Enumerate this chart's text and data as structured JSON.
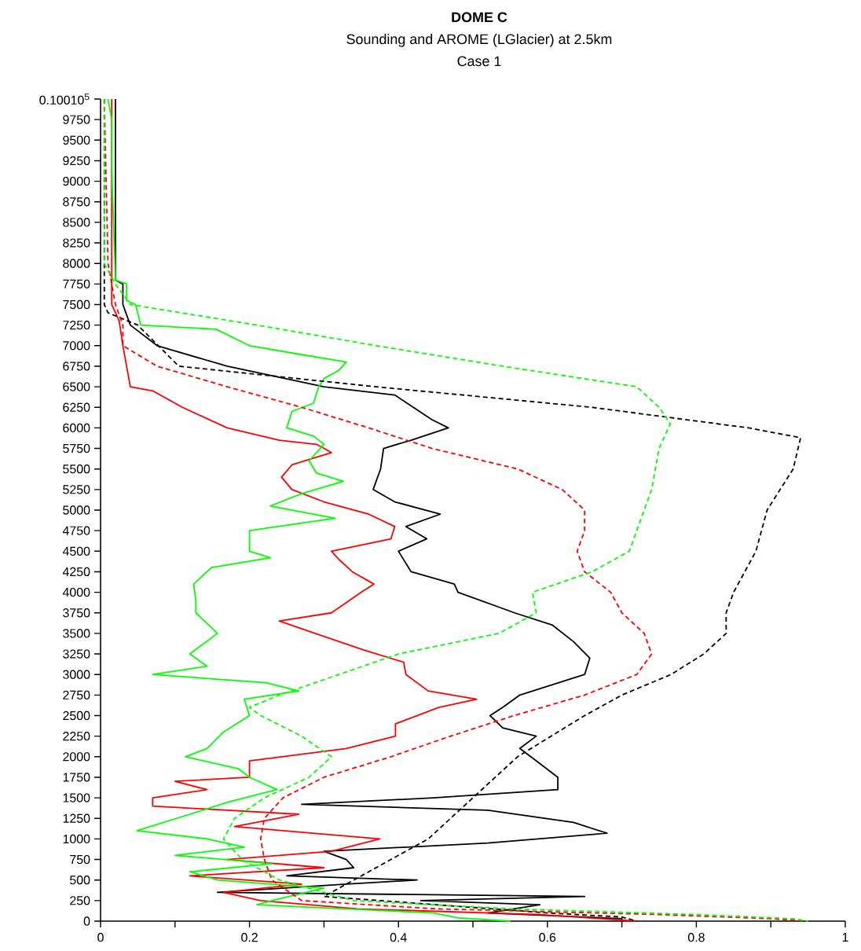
{
  "chart_data": {
    "type": "line",
    "title": "DOME C",
    "subtitle": "Sounding and AROME (LGlacier) at 2.5km",
    "annotations": [
      "Case 1"
    ],
    "xlim": [
      0,
      1
    ],
    "ylim": [
      0,
      10000
    ],
    "xticks": [
      0,
      {
        "value": 0.1,
        "label": null
      },
      {
        "value": 0.2,
        "label": "0.2"
      },
      {
        "value": 0.3,
        "label": null
      },
      {
        "value": 0.4,
        "label": "0.4"
      },
      {
        "value": 0.5,
        "label": null
      },
      {
        "value": 0.6,
        "label": "0.6"
      },
      {
        "value": 0.7,
        "label": null
      },
      {
        "value": 0.8,
        "label": "0.8"
      },
      {
        "value": 0.9,
        "label": null
      },
      1
    ],
    "yticks": [
      0,
      250,
      500,
      750,
      1000,
      1250,
      1500,
      1750,
      2000,
      2250,
      2500,
      2750,
      3000,
      3250,
      3500,
      3750,
      4000,
      4250,
      4500,
      4750,
      5000,
      5250,
      5500,
      5750,
      6000,
      6250,
      6500,
      6750,
      7000,
      7250,
      7500,
      7750,
      8000,
      8250,
      8500,
      8750,
      9000,
      9250,
      9500,
      9750,
      {
        "value": 10000,
        "label": "0.10010$^{5}$"
      }
    ],
    "grid": false,
    "legend": false,
    "marker": "none",
    "series": [
      {
        "color": "#000000",
        "line_style": "solid",
        "x": [
          0.02,
          0.02,
          0.03,
          0.03,
          0.04,
          0.076,
          0.17,
          0.3,
          0.395,
          0.42,
          0.445,
          0.467,
          0.417,
          0.38,
          0.376,
          0.366,
          0.395,
          0.456,
          0.41,
          0.438,
          0.4,
          0.417,
          0.475,
          0.48,
          0.556,
          0.607,
          0.635,
          0.657,
          0.65,
          0.563,
          0.54,
          0.523,
          0.54,
          0.585,
          0.563,
          0.585,
          0.614,
          0.614,
          0.447,
          0.27,
          0.52,
          0.635,
          0.68,
          0.52,
          0.3,
          0.33,
          0.34,
          0.25,
          0.425,
          0.33,
          0.157,
          0.65,
          0.43,
          0.59,
          0.52,
          0.7,
          0.7
        ],
        "values": [
          10000,
          7800,
          7750,
          7500,
          7250,
          7000,
          6750,
          6500,
          6400,
          6250,
          6100,
          6000,
          5850,
          5750,
          5500,
          5250,
          5100,
          4950,
          4800,
          4650,
          4500,
          4250,
          4100,
          4000,
          3750,
          3600,
          3400,
          3200,
          3000,
          2750,
          2600,
          2500,
          2350,
          2250,
          2100,
          1950,
          1750,
          1600,
          1500,
          1420,
          1350,
          1200,
          1070,
          950,
          850,
          750,
          650,
          550,
          500,
          450,
          350,
          300,
          250,
          200,
          100,
          30,
          0
        ]
      },
      {
        "color": "#ff0000",
        "line_style": "solid",
        "x": [
          0.015,
          0.015,
          0.025,
          0.03,
          0.04,
          0.07,
          0.11,
          0.17,
          0.24,
          0.29,
          0.31,
          0.257,
          0.243,
          0.257,
          0.3,
          0.36,
          0.395,
          0.39,
          0.31,
          0.32,
          0.338,
          0.367,
          0.35,
          0.31,
          0.24,
          0.288,
          0.353,
          0.407,
          0.41,
          0.44,
          0.505,
          0.454,
          0.396,
          0.396,
          0.33,
          0.2,
          0.2,
          0.1,
          0.143,
          0.07,
          0.07,
          0.266,
          0.18,
          0.375,
          0.31,
          0.17,
          0.3,
          0.12,
          0.27,
          0.165,
          0.215,
          0.345,
          0.59,
          0.72
        ],
        "values": [
          10000,
          7500,
          7300,
          7000,
          6500,
          6450,
          6250,
          6000,
          5850,
          5800,
          5700,
          5550,
          5400,
          5250,
          5100,
          4950,
          4800,
          4650,
          4500,
          4400,
          4250,
          4100,
          4000,
          3750,
          3650,
          3500,
          3300,
          3150,
          3000,
          2800,
          2700,
          2600,
          2400,
          2250,
          2100,
          1950,
          1750,
          1700,
          1600,
          1500,
          1400,
          1300,
          1150,
          1000,
          850,
          750,
          650,
          550,
          450,
          350,
          250,
          150,
          80,
          0
        ]
      },
      {
        "color": "#00ff00",
        "line_style": "solid",
        "x": [
          0.01,
          0.015,
          0.015,
          0.02,
          0.035,
          0.035,
          0.047,
          0.054,
          0.155,
          0.2,
          0.264,
          0.33,
          0.32,
          0.3,
          0.293,
          0.286,
          0.257,
          0.25,
          0.286,
          0.3,
          0.28,
          0.29,
          0.326,
          0.27,
          0.228,
          0.315,
          0.2,
          0.2,
          0.228,
          0.149,
          0.143,
          0.125,
          0.128,
          0.128,
          0.157,
          0.12,
          0.143,
          0.07,
          0.222,
          0.266,
          0.193,
          0.2,
          0.165,
          0.143,
          0.114,
          0.186,
          0.2,
          0.237,
          0.172,
          0.12,
          0.049,
          0.143,
          0.193,
          0.1,
          0.23,
          0.12,
          0.157,
          0.3,
          0.23,
          0.21,
          0.447,
          0.48,
          0.55
        ],
        "values": [
          10000,
          9750,
          9150,
          7800,
          7750,
          7550,
          7500,
          7250,
          7200,
          7000,
          6900,
          6800,
          6700,
          6600,
          6500,
          6300,
          6200,
          6000,
          5900,
          5800,
          5600,
          5450,
          5350,
          5200,
          5050,
          4900,
          4750,
          4500,
          4420,
          4300,
          4250,
          4100,
          3900,
          3750,
          3500,
          3250,
          3100,
          3000,
          2900,
          2800,
          2700,
          2500,
          2300,
          2100,
          2000,
          1850,
          1750,
          1600,
          1450,
          1300,
          1100,
          1000,
          900,
          800,
          700,
          600,
          500,
          400,
          250,
          200,
          100,
          40,
          0
        ]
      },
      {
        "color": "#000000",
        "line_style": "dashed",
        "x": [
          0.005,
          0.005,
          0.01,
          0.05,
          0.105,
          0.37,
          0.66,
          0.87,
          0.94,
          0.93,
          0.895,
          0.88,
          0.85,
          0.84,
          0.84,
          0.81,
          0.766,
          0.7,
          0.65,
          0.56,
          0.5,
          0.47,
          0.44,
          0.39,
          0.34,
          0.3,
          0.45,
          0.6,
          0.7,
          0.72
        ],
        "values": [
          10000,
          7500,
          7400,
          7250,
          6750,
          6500,
          6250,
          6000,
          5880,
          5500,
          5000,
          4500,
          4000,
          3750,
          3500,
          3250,
          3000,
          2750,
          2500,
          2000,
          1500,
          1250,
          1000,
          750,
          500,
          300,
          200,
          100,
          50,
          0
        ]
      },
      {
        "color": "#ff0000",
        "line_style": "dashed",
        "x": [
          0.005,
          0.01,
          0.02,
          0.03,
          0.03,
          0.076,
          0.17,
          0.27,
          0.36,
          0.445,
          0.56,
          0.62,
          0.65,
          0.65,
          0.64,
          0.65,
          0.685,
          0.7,
          0.73,
          0.74,
          0.72,
          0.65,
          0.555,
          0.47,
          0.39,
          0.3,
          0.245,
          0.22,
          0.215,
          0.22,
          0.23,
          0.27,
          0.45,
          0.75,
          0.9,
          0.95
        ],
        "values": [
          10000,
          8000,
          7500,
          7250,
          7000,
          6750,
          6500,
          6250,
          6000,
          5750,
          5500,
          5250,
          5000,
          4750,
          4500,
          4250,
          4000,
          3750,
          3500,
          3250,
          3000,
          2750,
          2500,
          2250,
          2000,
          1750,
          1500,
          1250,
          1000,
          750,
          500,
          250,
          150,
          80,
          30,
          0
        ]
      },
      {
        "color": "#00ff00",
        "line_style": "dashed",
        "x": [
          0.005,
          0.005,
          0.02,
          0.04,
          0.21,
          0.37,
          0.54,
          0.72,
          0.75,
          0.765,
          0.75,
          0.74,
          0.72,
          0.71,
          0.66,
          0.58,
          0.585,
          0.535,
          0.4,
          0.32,
          0.24,
          0.2,
          0.215,
          0.27,
          0.31,
          0.28,
          0.22,
          0.18,
          0.165,
          0.19,
          0.24,
          0.34,
          0.55,
          0.8,
          0.93,
          0.95
        ],
        "values": [
          10000,
          8000,
          7750,
          7500,
          7250,
          7000,
          6750,
          6500,
          6250,
          6050,
          5750,
          5250,
          4750,
          4500,
          4250,
          4000,
          3750,
          3500,
          3250,
          3000,
          2750,
          2600,
          2500,
          2250,
          2000,
          1750,
          1500,
          1250,
          1000,
          750,
          500,
          250,
          150,
          80,
          30,
          0
        ]
      }
    ]
  }
}
